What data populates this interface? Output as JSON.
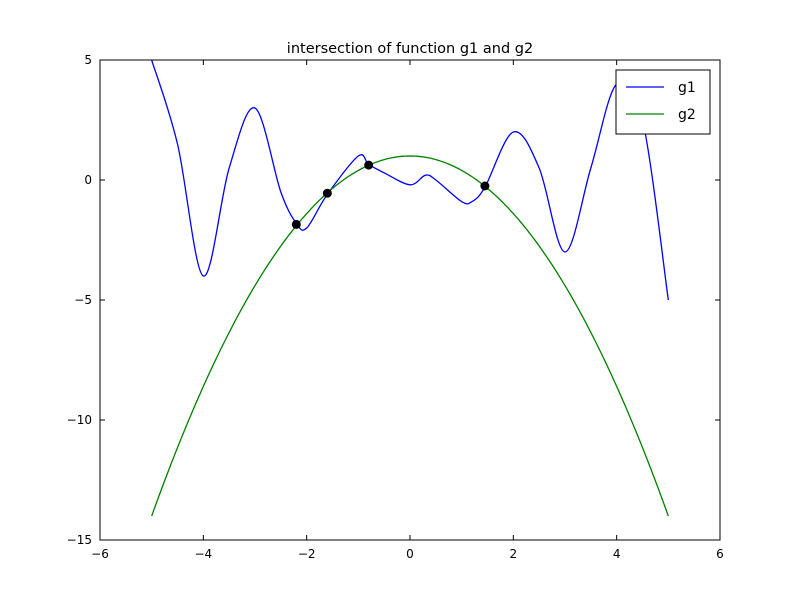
{
  "chart_data": {
    "type": "line",
    "title": "intersection of function g1 and g2",
    "xlabel": "",
    "ylabel": "",
    "xlim": [
      -6,
      6
    ],
    "ylim": [
      -15,
      5
    ],
    "grid": false,
    "legend_position": "top-right",
    "x_ticks": [
      -6,
      -4,
      -2,
      0,
      2,
      4,
      6
    ],
    "y_ticks": [
      5,
      0,
      -5,
      -10,
      -15
    ],
    "x_tick_labels": [
      "−6",
      "−4",
      "−2",
      "0",
      "2",
      "4",
      "6"
    ],
    "y_tick_labels": [
      "5",
      "0",
      "−5",
      "−10",
      "−15"
    ],
    "series": [
      {
        "name": "g1",
        "color": "#0000ff",
        "x": [
          -5.0,
          -4.5,
          -4.0,
          -3.5,
          -3.0,
          -2.5,
          -2.2,
          -2.0,
          -1.6,
          -1.0,
          -0.8,
          -0.5,
          0.0,
          0.3,
          0.5,
          1.0,
          1.2,
          1.45,
          2.0,
          2.5,
          3.0,
          3.5,
          4.0,
          4.5,
          5.0
        ],
        "y": [
          5.0,
          1.5,
          -4.0,
          0.5,
          3.0,
          -0.5,
          -1.8,
          -2.0,
          -0.6,
          1.0,
          0.65,
          0.3,
          -0.2,
          0.2,
          0.0,
          -0.9,
          -0.9,
          -0.3,
          2.0,
          0.5,
          -3.0,
          0.5,
          4.0,
          2.5,
          -5.0
        ]
      },
      {
        "name": "g2",
        "color": "#008000",
        "function": "1 - 0.6*x^2",
        "x_range": [
          -5,
          5
        ]
      }
    ],
    "intersections": [
      {
        "x": -2.2,
        "y": -1.85
      },
      {
        "x": -1.6,
        "y": -0.55
      },
      {
        "x": -0.8,
        "y": 0.62
      },
      {
        "x": 1.45,
        "y": -0.25
      }
    ]
  }
}
